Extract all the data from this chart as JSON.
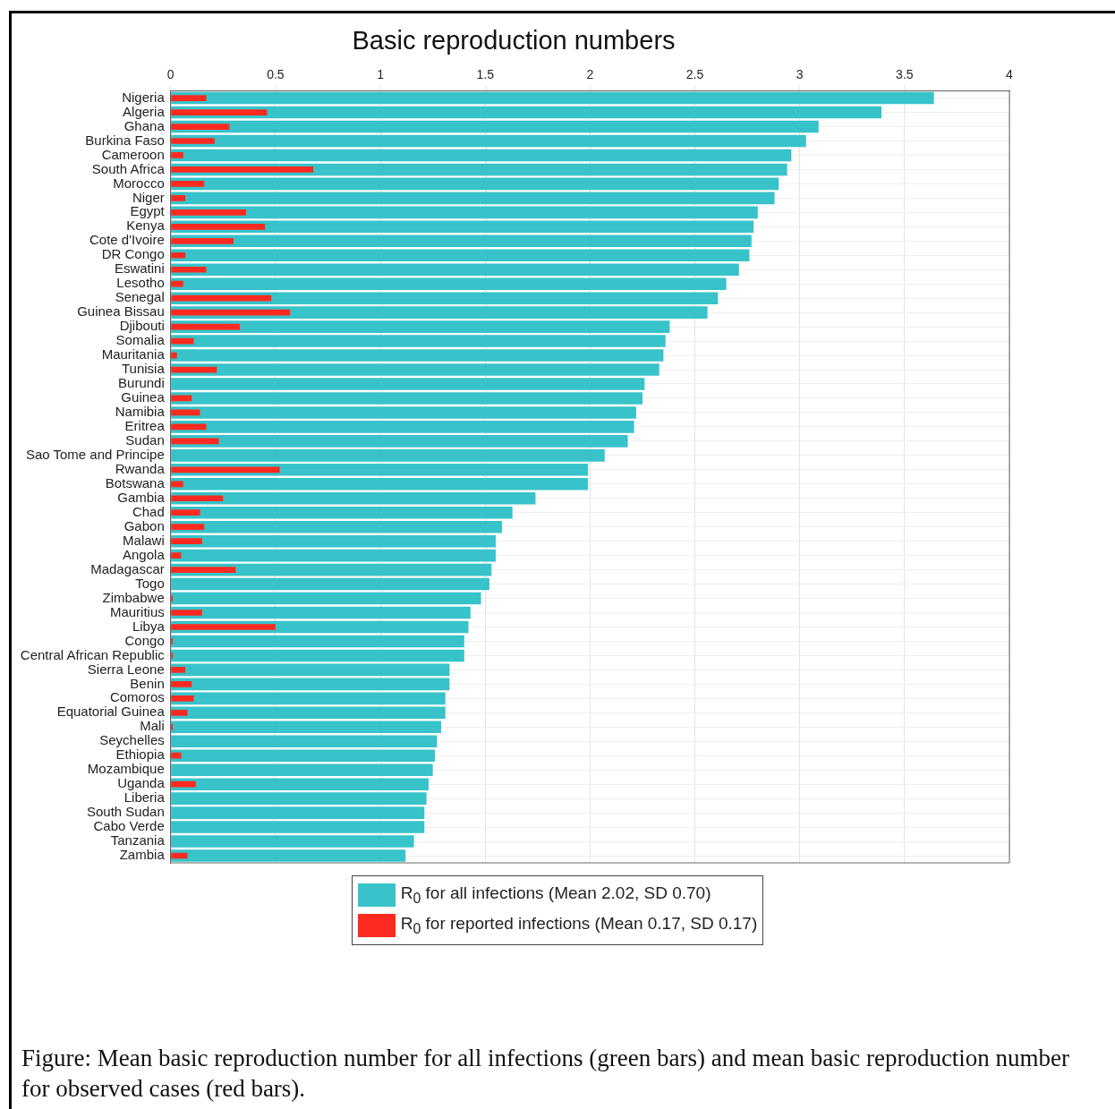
{
  "chart_data": {
    "type": "bar",
    "orientation": "horizontal",
    "title": "Basic reproduction numbers",
    "categories": [
      "Nigeria",
      "Algeria",
      "Ghana",
      "Burkina Faso",
      "Cameroon",
      "South Africa",
      "Morocco",
      "Niger",
      "Egypt",
      "Kenya",
      "Cote d'Ivoire",
      "DR Congo",
      "Eswatini",
      "Lesotho",
      "Senegal",
      "Guinea Bissau",
      "Djibouti",
      "Somalia",
      "Mauritania",
      "Tunisia",
      "Burundi",
      "Guinea",
      "Namibia",
      "Eritrea",
      "Sudan",
      "Sao Tome and Principe",
      "Rwanda",
      "Botswana",
      "Gambia",
      "Chad",
      "Gabon",
      "Malawi",
      "Angola",
      "Madagascar",
      "Togo",
      "Zimbabwe",
      "Mauritius",
      "Libya",
      "Congo",
      "Central African Republic",
      "Sierra Leone",
      "Benin",
      "Comoros",
      "Equatorial Guinea",
      "Mali",
      "Seychelles",
      "Ethiopia",
      "Mozambique",
      "Uganda",
      "Liberia",
      "South Sudan",
      "Cabo Verde",
      "Tanzania",
      "Zambia"
    ],
    "series": [
      {
        "name": "R$_{0}$ for all infections (Mean 2.02, SD 0.70)",
        "color": "#37c3c9",
        "values": [
          3.64,
          3.39,
          3.09,
          3.03,
          2.96,
          2.94,
          2.9,
          2.88,
          2.8,
          2.78,
          2.77,
          2.76,
          2.71,
          2.65,
          2.61,
          2.56,
          2.38,
          2.36,
          2.35,
          2.33,
          2.26,
          2.25,
          2.22,
          2.21,
          2.18,
          2.07,
          1.99,
          1.99,
          1.74,
          1.63,
          1.58,
          1.55,
          1.55,
          1.53,
          1.52,
          1.48,
          1.43,
          1.42,
          1.4,
          1.4,
          1.33,
          1.33,
          1.31,
          1.31,
          1.29,
          1.27,
          1.26,
          1.25,
          1.23,
          1.22,
          1.21,
          1.21,
          1.16,
          1.12
        ]
      },
      {
        "name": "R$_{0}$ for reported infections (Mean 0.17, SD 0.17)",
        "color": "#ff2a1f",
        "values": [
          0.17,
          0.46,
          0.28,
          0.21,
          0.06,
          0.68,
          0.16,
          0.07,
          0.36,
          0.45,
          0.3,
          0.07,
          0.17,
          0.06,
          0.48,
          0.57,
          0.33,
          0.11,
          0.03,
          0.22,
          0,
          0.1,
          0.14,
          0.17,
          0.23,
          0,
          0.52,
          0.06,
          0.25,
          0.14,
          0.16,
          0.15,
          0.05,
          0.31,
          0,
          0.01,
          0.15,
          0.5,
          0.01,
          0.01,
          0.07,
          0.1,
          0.11,
          0.08,
          0.01,
          0,
          0.05,
          0,
          0.12,
          0,
          0,
          0,
          0,
          0.08
        ]
      }
    ],
    "xlim": [
      0,
      4
    ],
    "xticks": [
      0,
      0.5,
      1,
      1.5,
      2,
      2.5,
      3,
      3.5,
      4
    ],
    "grid": true,
    "legend": "bottom",
    "annotations": [
      "Figure: Mean basic reproduction number for all infections (green bars) and mean basic reproduction number for observed cases (red bars)."
    ]
  }
}
